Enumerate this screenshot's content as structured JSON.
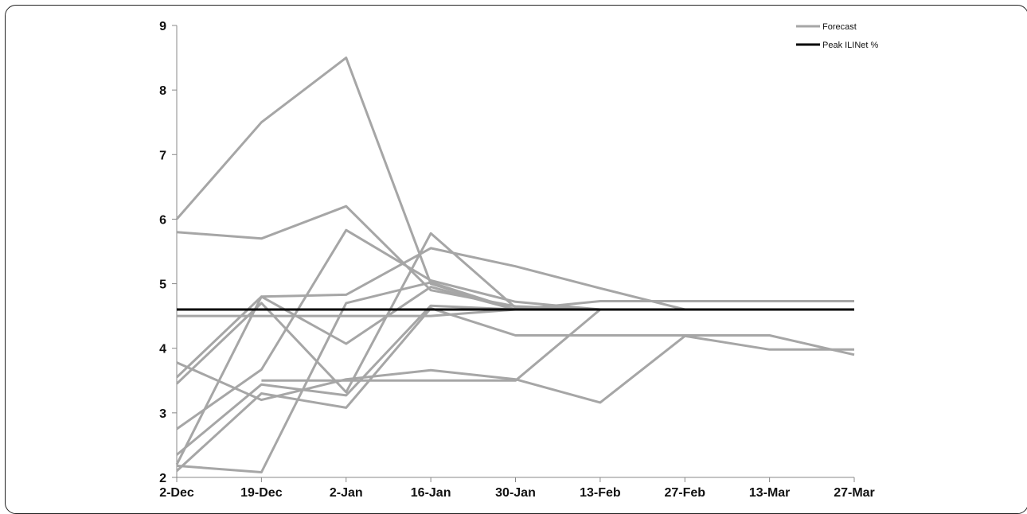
{
  "chart_data": {
    "type": "line",
    "title": "",
    "xlabel": "",
    "ylabel": "",
    "x": [
      "2-Dec",
      "19-Dec",
      "2-Jan",
      "16-Jan",
      "30-Jan",
      "13-Feb",
      "27-Feb",
      "13-Mar",
      "27-Mar"
    ],
    "ylim": [
      2,
      9
    ],
    "yticks": [
      "2",
      "3",
      "4",
      "5",
      "6",
      "7",
      "8",
      "9"
    ],
    "grid": false,
    "legend_position": "top-right",
    "legend": [
      {
        "label": "Forecast",
        "color": "#a6a6a6"
      },
      {
        "label": "Peak ILINet %",
        "color": "#000000"
      }
    ],
    "forecast_color": "#a6a6a6",
    "peak_color": "#000000",
    "series": [
      {
        "values": [
          6.0,
          7.5,
          8.5,
          5.0,
          4.6,
          4.6,
          4.6,
          4.6,
          4.6
        ]
      },
      {
        "values": [
          5.8,
          5.7,
          6.2,
          4.9,
          4.65,
          4.6,
          4.6,
          4.6,
          4.6
        ]
      },
      {
        "values": [
          3.55,
          4.8,
          4.83,
          5.55,
          5.27,
          4.93,
          4.6,
          4.6,
          4.6
        ]
      },
      {
        "values": [
          3.45,
          4.7,
          3.32,
          5.78,
          4.63,
          4.6,
          4.6,
          4.6,
          4.6
        ]
      },
      {
        "values": [
          2.75,
          3.67,
          5.83,
          5.05,
          4.72,
          4.6,
          4.6,
          4.6,
          4.6
        ]
      },
      {
        "values": [
          2.2,
          4.8,
          4.07,
          4.95,
          4.6,
          4.6,
          4.6,
          4.6,
          4.6
        ]
      },
      {
        "values": [
          2.35,
          3.44,
          3.27,
          4.66,
          4.6,
          4.73,
          4.73,
          4.73,
          4.73
        ]
      },
      {
        "values": [
          2.1,
          3.3,
          3.08,
          4.62,
          4.2,
          4.2,
          4.2,
          4.2,
          3.9
        ]
      },
      {
        "values": [
          2.18,
          2.08,
          4.7,
          5.02,
          4.6,
          4.6,
          4.6,
          4.6,
          4.6
        ]
      },
      {
        "values": [
          3.78,
          3.2,
          3.52,
          3.66,
          3.52,
          3.16,
          4.19,
          3.98,
          3.98
        ]
      },
      {
        "values": [
          null,
          3.5,
          3.5,
          3.5,
          3.5,
          4.6,
          4.6,
          4.6,
          4.6
        ]
      },
      {
        "values": [
          4.5,
          4.5,
          4.5,
          4.5,
          4.6,
          4.6,
          4.6,
          4.6,
          4.6
        ]
      }
    ],
    "peak_value": 4.6
  }
}
